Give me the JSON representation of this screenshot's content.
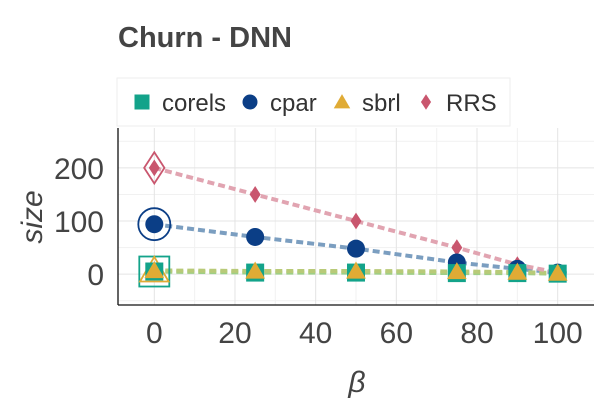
{
  "chart_data": {
    "type": "line",
    "title": "Churn - DNN",
    "xlabel": "β",
    "ylabel": "size",
    "xlim": [
      -9,
      109
    ],
    "ylim": [
      -58,
      275
    ],
    "xticks": [
      0,
      20,
      40,
      60,
      80,
      100
    ],
    "yticks": [
      0,
      100,
      200
    ],
    "grid": true,
    "legend_position": "top",
    "series": [
      {
        "name": "corels",
        "marker": "square",
        "color": "#13a38a",
        "line_color": "#9ecf86",
        "x": [
          0,
          25,
          50,
          75,
          90,
          100
        ],
        "y": [
          5,
          3,
          3,
          2,
          2,
          1
        ]
      },
      {
        "name": "cpar",
        "marker": "circle",
        "color": "#0b3e86",
        "line_color": "#7b9ec0",
        "x": [
          0,
          25,
          50,
          75,
          90,
          100
        ],
        "y": [
          94,
          70,
          48,
          22,
          10,
          3
        ]
      },
      {
        "name": "sbrl",
        "marker": "triangle",
        "color": "#e0ab35",
        "line_color": "#b8ca78",
        "x": [
          0,
          25,
          50,
          75,
          90,
          100
        ],
        "y": [
          7,
          6,
          6,
          5,
          4,
          2
        ]
      },
      {
        "name": "RRS",
        "marker": "diamond",
        "color": "#c9566e",
        "line_color": "#e1a4b1",
        "x": [
          0,
          25,
          50,
          75,
          90,
          100
        ],
        "y": [
          200,
          150,
          100,
          50,
          18,
          3
        ]
      }
    ],
    "highlight_x": 0
  }
}
